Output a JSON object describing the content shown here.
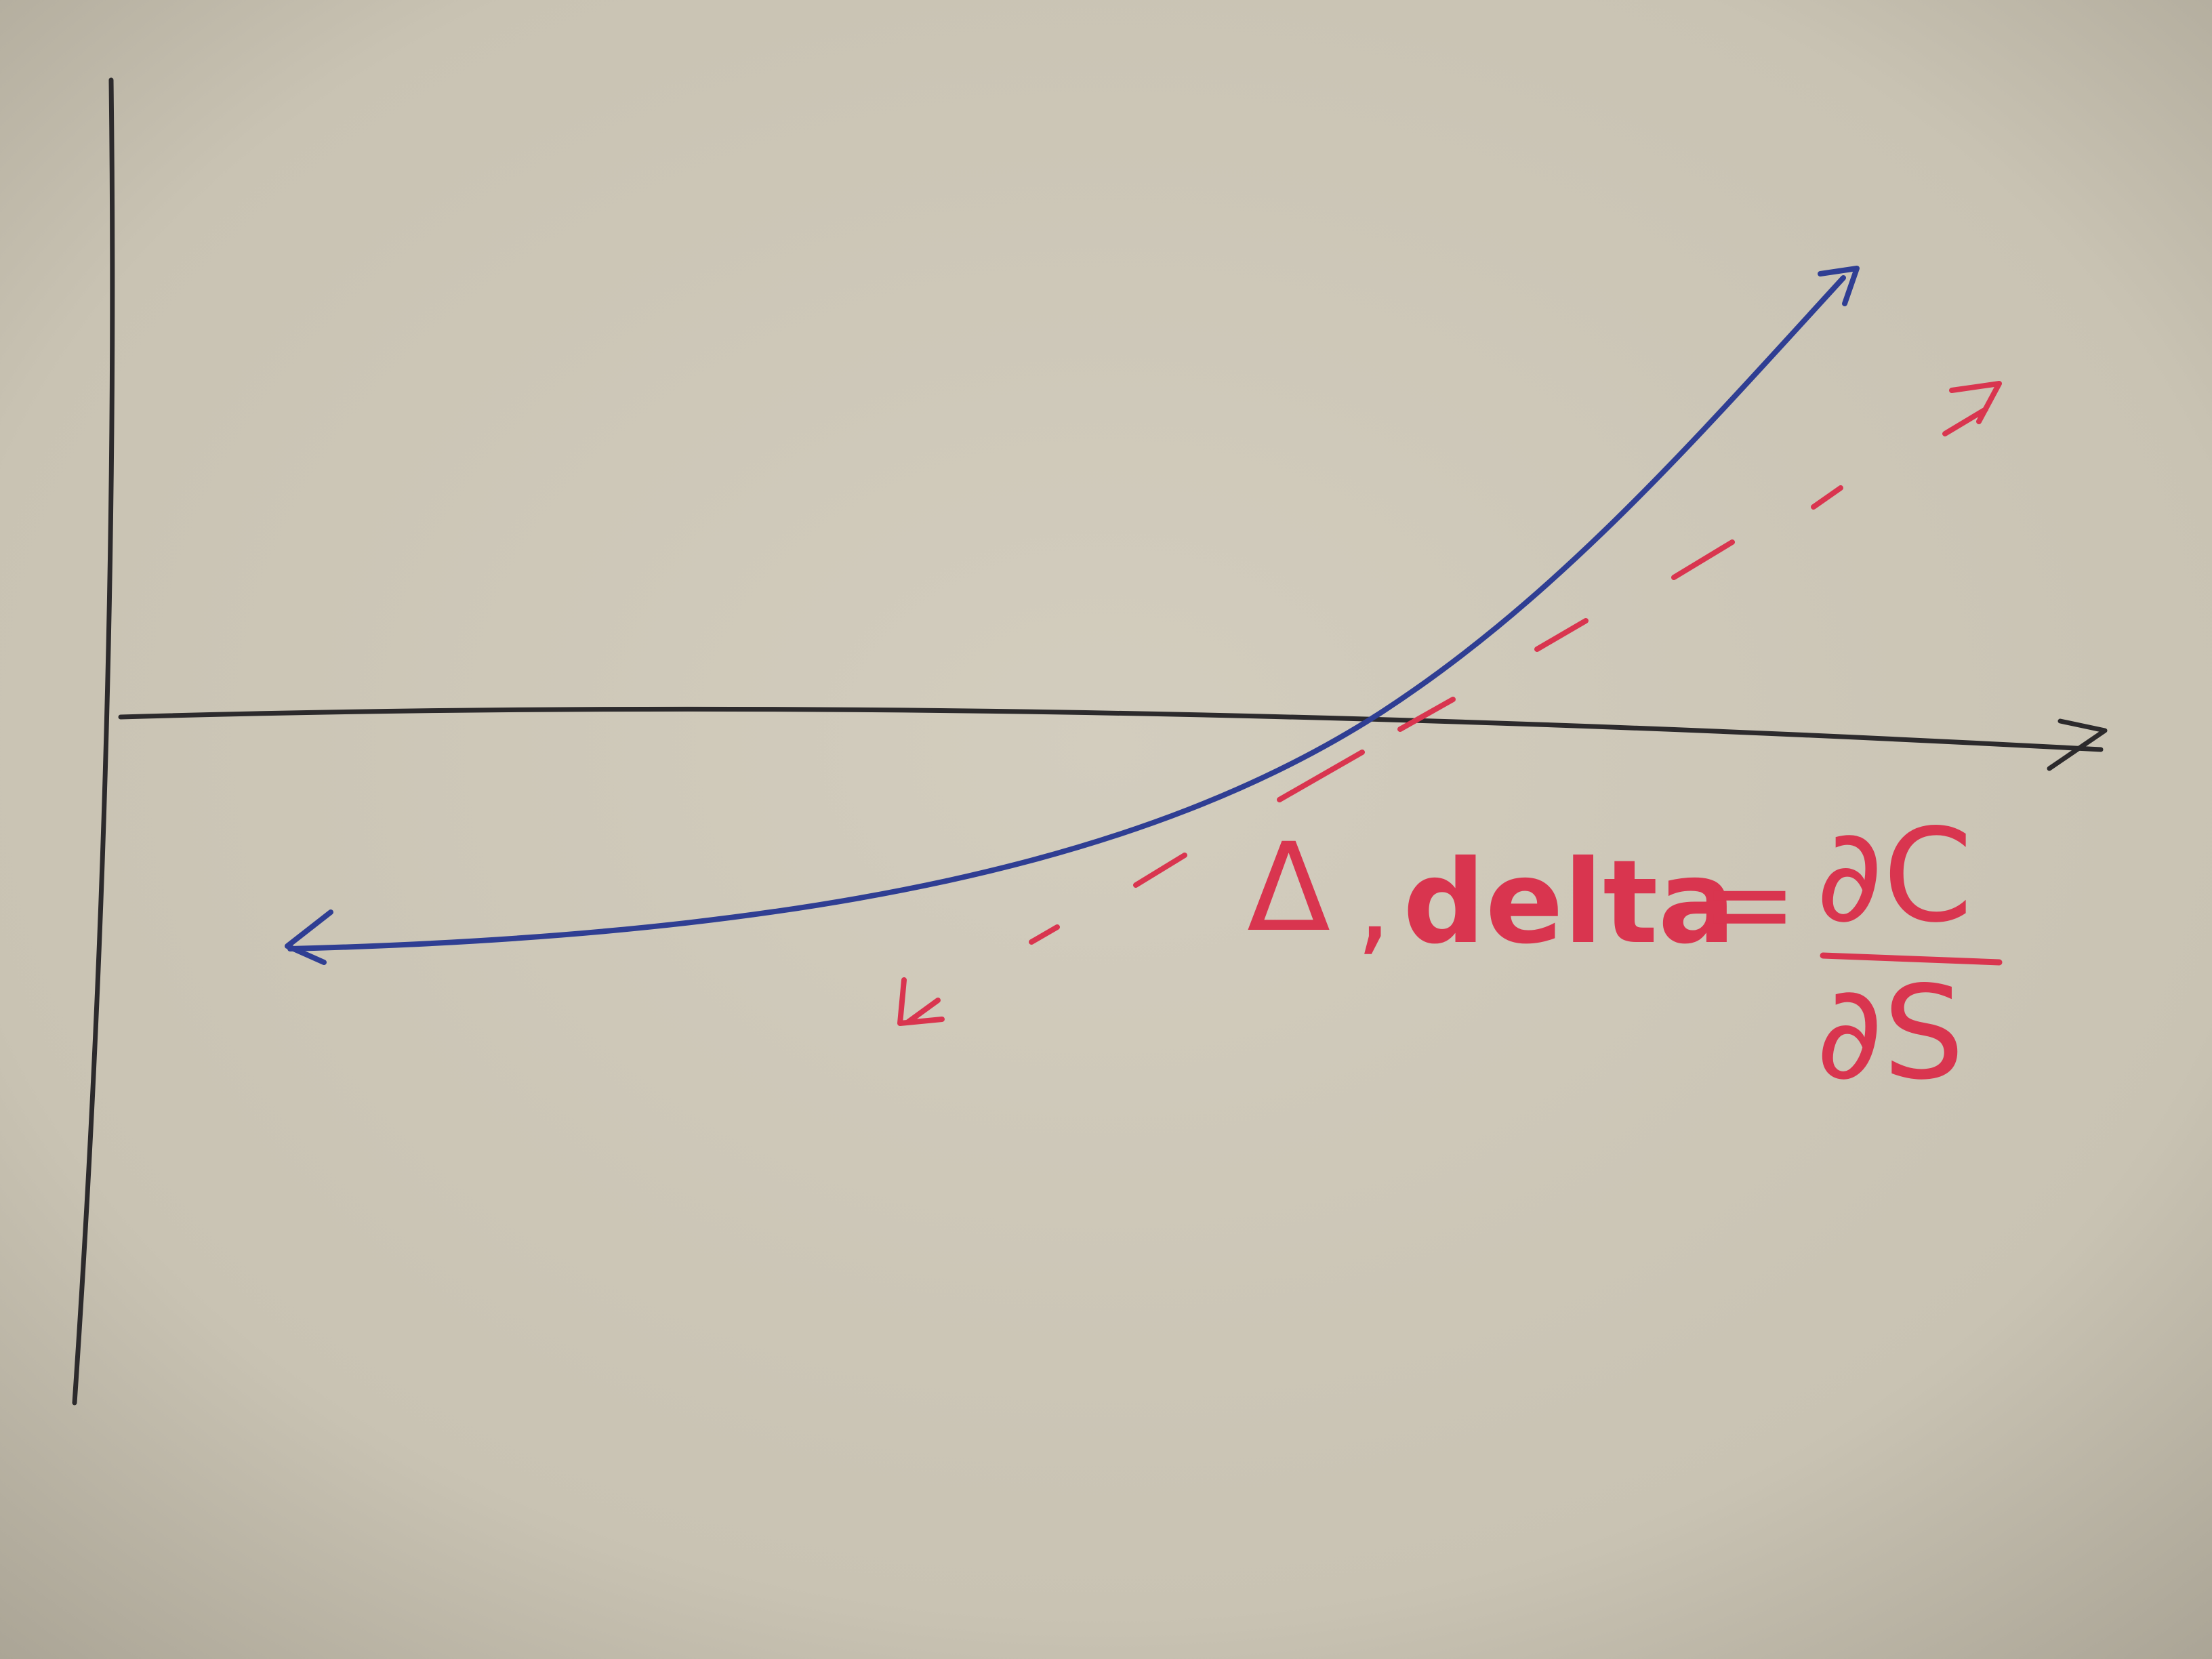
{
  "colors": {
    "paper": "#cdc7b7",
    "paper_vignette": "#a59f90",
    "axis_ink": "#2c2a2c",
    "curve_ink": "#2f3e93",
    "tangent_ink": "#d9354f"
  },
  "annotation": {
    "delta_symbol": "Δ",
    "comma": ",",
    "word": "delta",
    "equals": "=",
    "numerator": "∂C",
    "denominator": "∂S"
  }
}
